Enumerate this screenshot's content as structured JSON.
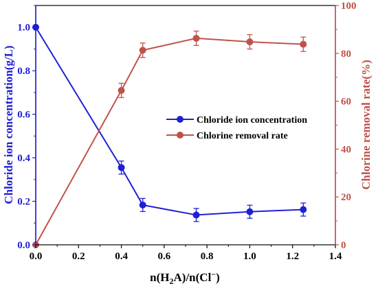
{
  "colors": {
    "series1": "#1f1fd6",
    "series2": "#c0524a",
    "axis": "#000000"
  },
  "chart_data": {
    "type": "line",
    "xlabel": {
      "main": "n(H",
      "sub1": "2",
      "mid": "A)/n(Cl",
      "sup": "−",
      "end": ")"
    },
    "ylabel_left": "Chloride ion concentration(g/L)",
    "ylabel_right": "Chlorine removal rate(%)",
    "xlim": [
      0.0,
      1.4
    ],
    "ylim_left": [
      0.0,
      1.1
    ],
    "ylim_right": [
      0,
      100
    ],
    "x_ticks": [
      "0.0",
      "0.2",
      "0.4",
      "0.6",
      "0.8",
      "1.0",
      "1.2",
      "1.4"
    ],
    "y_left_ticks": [
      "0.0",
      "0.2",
      "0.4",
      "0.6",
      "0.8",
      "1.0"
    ],
    "y_right_ticks": [
      "0",
      "20",
      "40",
      "60",
      "80",
      "100"
    ],
    "legend_position": "center-right",
    "series": [
      {
        "name": "Chloride ion concentration",
        "axis": "left",
        "color": "#1f1fd6",
        "marker": "circle",
        "x": [
          0.0,
          0.4,
          0.5,
          0.75,
          1.0,
          1.25
        ],
        "y": [
          1.0,
          0.355,
          0.183,
          0.137,
          0.152,
          0.162
        ],
        "err": [
          0.0,
          0.03,
          0.03,
          0.03,
          0.03,
          0.03
        ]
      },
      {
        "name": "Chlorine removal rate",
        "axis": "right",
        "color": "#c0524a",
        "marker": "circle",
        "x": [
          0.0,
          0.4,
          0.5,
          0.75,
          1.0,
          1.25
        ],
        "y": [
          0.0,
          64.5,
          81.3,
          86.3,
          84.8,
          83.8
        ],
        "err": [
          0.0,
          3.0,
          3.0,
          3.0,
          3.0,
          3.0
        ]
      }
    ]
  }
}
